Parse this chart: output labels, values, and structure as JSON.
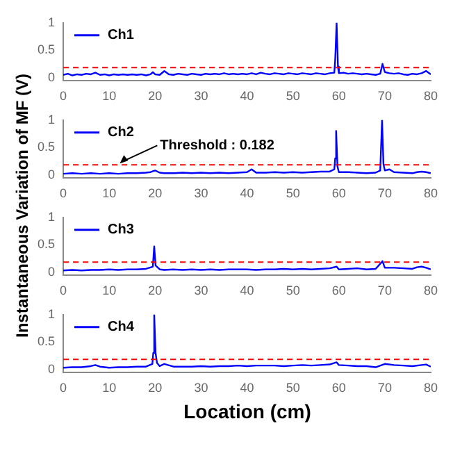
{
  "chart_data": [
    {
      "type": "line",
      "ylabel": "Instantaneous Variation of MF (V)",
      "legend": "top left",
      "grid": false,
      "marker": "none",
      "line_style": "solid",
      "xlim": [
        0,
        80
      ],
      "xticks": [
        0,
        10,
        20,
        30,
        40,
        50,
        60,
        70,
        80
      ],
      "ylim": [
        -0.06,
        1
      ],
      "yticks": [
        0,
        0.5,
        1
      ],
      "x": [
        0,
        1,
        2,
        3,
        4,
        5,
        6,
        7,
        8,
        9,
        10,
        11,
        12,
        13,
        14,
        15,
        16,
        17,
        18,
        19,
        19.5,
        20,
        21,
        22,
        23,
        24,
        25,
        26,
        27,
        28,
        29,
        30,
        31,
        32,
        33,
        34,
        35,
        36,
        37,
        38,
        39,
        40,
        41,
        42,
        43,
        44,
        45,
        46,
        47,
        48,
        49,
        50,
        51,
        52,
        53,
        54,
        55,
        56,
        57,
        58,
        59,
        59.2,
        59.5,
        59.8,
        60,
        61,
        62,
        63,
        64,
        65,
        66,
        67,
        68,
        69,
        69.5,
        70,
        71,
        72,
        73,
        74,
        75,
        76,
        77,
        78,
        79,
        80
      ],
      "series": [
        {
          "name": "Ch1",
          "color": "#0000ff",
          "values": [
            0.05,
            0.07,
            0.04,
            0.06,
            0.05,
            0.07,
            0.06,
            0.09,
            0.05,
            0.06,
            0.04,
            0.06,
            0.05,
            0.06,
            0.05,
            0.06,
            0.05,
            0.06,
            0.04,
            0.06,
            0.1,
            0.06,
            0.05,
            0.12,
            0.06,
            0.05,
            0.07,
            0.06,
            0.05,
            0.07,
            0.06,
            0.05,
            0.07,
            0.06,
            0.07,
            0.06,
            0.08,
            0.06,
            0.07,
            0.06,
            0.07,
            0.06,
            0.08,
            0.06,
            0.09,
            0.07,
            0.06,
            0.08,
            0.07,
            0.06,
            0.08,
            0.07,
            0.06,
            0.08,
            0.07,
            0.06,
            0.08,
            0.07,
            0.06,
            0.08,
            0.09,
            0.32,
            1,
            0.2,
            0.08,
            0.09,
            0.07,
            0.08,
            0.07,
            0.06,
            0.07,
            0.06,
            0.05,
            0.07,
            0.25,
            0.1,
            0.08,
            0.07,
            0.08,
            0.06,
            0.05,
            0.07,
            0.06,
            0.08,
            0.12,
            0.06
          ]
        }
      ],
      "ref_lines": [
        {
          "axis": "y",
          "value": 0.182,
          "color": "#ff0000",
          "line_style": "dashed"
        }
      ]
    },
    {
      "type": "line",
      "legend": "top left",
      "grid": false,
      "marker": "none",
      "line_style": "solid",
      "xlim": [
        0,
        80
      ],
      "xticks": [
        0,
        10,
        20,
        30,
        40,
        50,
        60,
        70,
        80
      ],
      "ylim": [
        -0.06,
        1
      ],
      "yticks": [
        0,
        0.5,
        1
      ],
      "x": [
        0,
        2,
        4,
        6,
        8,
        10,
        12,
        14,
        16,
        18,
        19,
        20,
        21,
        22,
        24,
        26,
        28,
        30,
        32,
        34,
        36,
        38,
        40,
        41,
        42,
        44,
        46,
        48,
        50,
        52,
        54,
        56,
        58,
        59,
        59.2,
        59.4,
        59.7,
        60,
        62,
        64,
        66,
        68,
        69,
        69.4,
        69.7,
        70,
        71,
        72,
        74,
        76,
        77,
        78,
        79,
        80
      ],
      "series": [
        {
          "name": "Ch2",
          "color": "#0000ff",
          "values": [
            0.02,
            0.03,
            0.02,
            0.03,
            0.02,
            0.03,
            0.02,
            0.03,
            0.03,
            0.04,
            0.05,
            0.08,
            0.04,
            0.03,
            0.03,
            0.04,
            0.03,
            0.04,
            0.03,
            0.04,
            0.03,
            0.04,
            0.05,
            0.1,
            0.04,
            0.04,
            0.05,
            0.04,
            0.05,
            0.04,
            0.05,
            0.06,
            0.06,
            0.1,
            0.3,
            0.8,
            0.15,
            0.05,
            0.05,
            0.04,
            0.03,
            0.04,
            0.08,
            1,
            0.2,
            0.08,
            0.1,
            0.05,
            0.04,
            0.03,
            0.05,
            0.06,
            0.05,
            0.03
          ]
        }
      ],
      "ref_lines": [
        {
          "axis": "y",
          "value": 0.182,
          "color": "#ff0000",
          "line_style": "dashed",
          "label": "Threshold : 0.182"
        }
      ]
    },
    {
      "type": "line",
      "legend": "top left",
      "grid": false,
      "marker": "none",
      "line_style": "solid",
      "xlim": [
        0,
        80
      ],
      "xticks": [
        0,
        10,
        20,
        30,
        40,
        50,
        60,
        70,
        80
      ],
      "ylim": [
        -0.06,
        1
      ],
      "yticks": [
        0,
        0.5,
        1
      ],
      "x": [
        0,
        2,
        4,
        6,
        8,
        10,
        12,
        14,
        16,
        18,
        19.5,
        19.8,
        20.1,
        21,
        22,
        24,
        26,
        28,
        30,
        32,
        34,
        36,
        38,
        40,
        42,
        44,
        46,
        48,
        50,
        52,
        54,
        56,
        58,
        59.5,
        60,
        62,
        64,
        66,
        68,
        69.5,
        70,
        72,
        74,
        76,
        77,
        78,
        79,
        80
      ],
      "series": [
        {
          "name": "Ch3",
          "color": "#0000ff",
          "values": [
            0.03,
            0.04,
            0.03,
            0.04,
            0.04,
            0.05,
            0.04,
            0.05,
            0.05,
            0.06,
            0.1,
            0.47,
            0.12,
            0.05,
            0.04,
            0.05,
            0.04,
            0.05,
            0.04,
            0.05,
            0.04,
            0.05,
            0.05,
            0.05,
            0.04,
            0.05,
            0.05,
            0.06,
            0.05,
            0.06,
            0.05,
            0.06,
            0.07,
            0.1,
            0.05,
            0.06,
            0.07,
            0.05,
            0.06,
            0.2,
            0.08,
            0.08,
            0.07,
            0.06,
            0.09,
            0.1,
            0.08,
            0.05
          ]
        }
      ],
      "ref_lines": [
        {
          "axis": "y",
          "value": 0.182,
          "color": "#ff0000",
          "line_style": "dashed"
        }
      ]
    },
    {
      "type": "line",
      "xlabel": "Location (cm)",
      "legend": "top left",
      "grid": false,
      "marker": "none",
      "line_style": "solid",
      "xlim": [
        0,
        80
      ],
      "xticks": [
        0,
        10,
        20,
        30,
        40,
        50,
        60,
        70,
        80
      ],
      "ylim": [
        -0.06,
        1
      ],
      "yticks": [
        0,
        0.5,
        1
      ],
      "x": [
        0,
        2,
        4,
        6,
        7,
        8,
        10,
        12,
        14,
        16,
        18,
        19.4,
        19.6,
        19.8,
        20.1,
        20.4,
        21,
        22,
        24,
        26,
        28,
        30,
        32,
        34,
        36,
        38,
        40,
        42,
        44,
        46,
        48,
        50,
        52,
        54,
        56,
        58,
        59.5,
        60,
        62,
        64,
        66,
        68,
        70,
        72,
        74,
        76,
        78,
        79,
        80
      ],
      "series": [
        {
          "name": "Ch4",
          "color": "#0000ff",
          "values": [
            0.03,
            0.04,
            0.04,
            0.06,
            0.08,
            0.05,
            0.03,
            0.04,
            0.04,
            0.05,
            0.05,
            0.1,
            0.3,
            1,
            0.3,
            0.12,
            0.06,
            0.1,
            0.05,
            0.05,
            0.05,
            0.06,
            0.05,
            0.06,
            0.06,
            0.07,
            0.06,
            0.07,
            0.07,
            0.07,
            0.06,
            0.07,
            0.08,
            0.07,
            0.08,
            0.09,
            0.13,
            0.08,
            0.07,
            0.06,
            0.06,
            0.04,
            0.1,
            0.08,
            0.07,
            0.06,
            0.08,
            0.09,
            0.05
          ]
        }
      ],
      "ref_lines": [
        {
          "axis": "y",
          "value": 0.182,
          "color": "#ff0000",
          "line_style": "dashed"
        }
      ]
    }
  ]
}
